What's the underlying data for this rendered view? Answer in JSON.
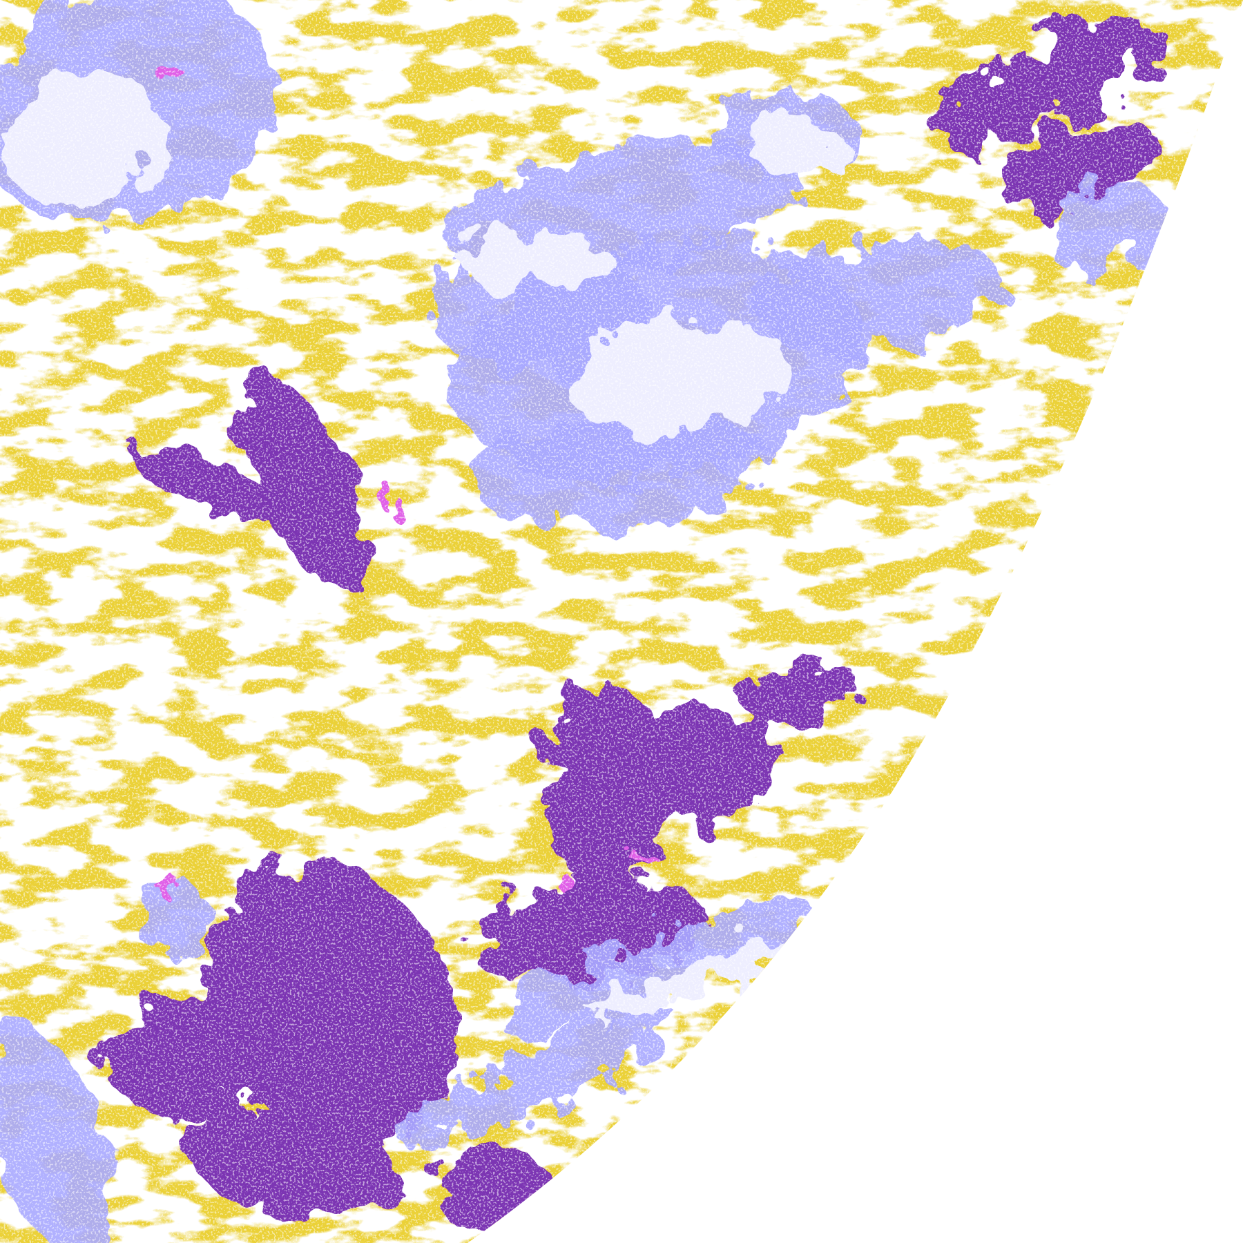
{
  "map": {
    "colors": {
      "background": "#ffffff",
      "clear": "#ffffff",
      "low_cloud": "#d4a20a",
      "mid_cloud": "#7b35b3",
      "high_thin": "#a8a8ff",
      "high_thick": "#eeeeff",
      "edge_gray": "#a0a0a8",
      "convective": "#e060e8"
    }
  }
}
